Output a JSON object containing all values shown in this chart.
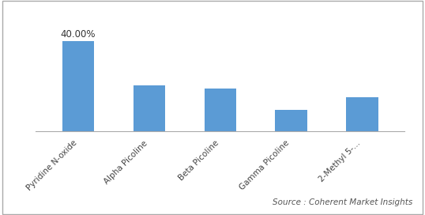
{
  "categories": [
    "Pyridine N-oxide",
    "Alpha Picoline",
    "Beta Picoline",
    "Gamma Picoline",
    "2-Methyl 5-..."
  ],
  "values": [
    40.0,
    20.5,
    19.0,
    9.5,
    15.0
  ],
  "bar_color": "#5b9bd5",
  "annotation_label": "40.00%",
  "annotation_index": 0,
  "source_text": "Source : Coherent Market Insights",
  "source_fontsize": 7.5,
  "ylim": [
    0,
    50
  ],
  "figsize": [
    5.38,
    2.72
  ],
  "dpi": 100,
  "background_color": "#ffffff",
  "bar_width": 0.45,
  "border_color": "#cccccc",
  "annotation_fontsize": 8.5,
  "tick_fontsize": 7.5
}
